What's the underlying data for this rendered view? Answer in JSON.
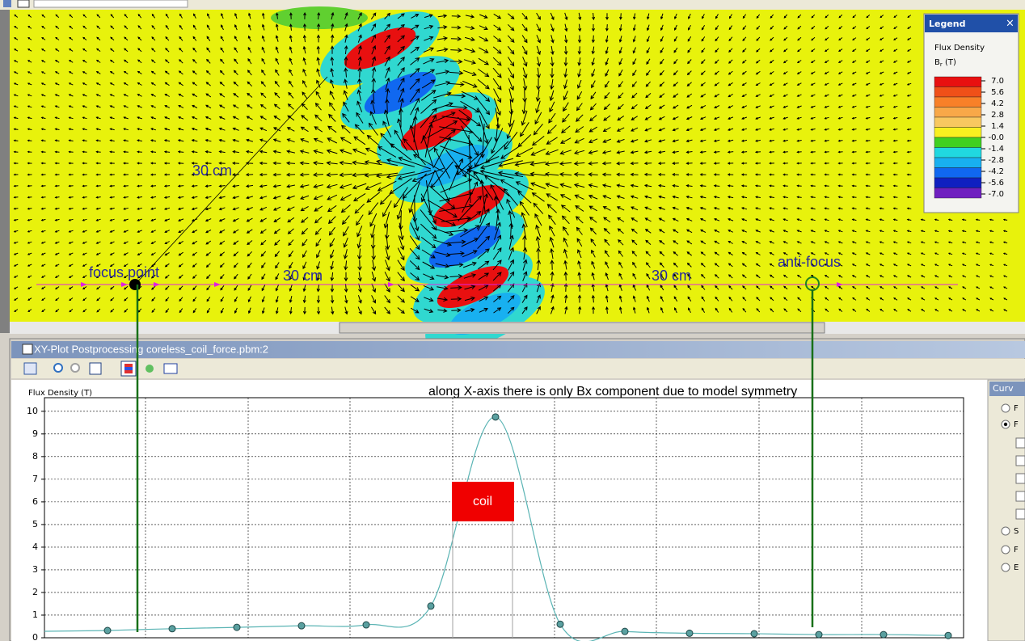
{
  "field_view": {
    "annotations": {
      "distance_diagonal": "30 cm",
      "distance_left": "30 cm",
      "distance_right": "30 cm",
      "focus": "focus point",
      "anti_focus": "anti-focus"
    },
    "legend": {
      "title": "Legend",
      "close": "×",
      "quantity": "Flux Density",
      "symbol": "B",
      "symbol_sub": "r",
      "unit": " (T)",
      "colors": [
        "#e81010",
        "#f05018",
        "#f88028",
        "#f8a848",
        "#f8c860",
        "#f8f020",
        "#40d020",
        "#20d8e0",
        "#18b0f0",
        "#1068f0",
        "#1020c0",
        "#7020c0"
      ],
      "ticks": [
        {
          "value": 7,
          "label": "7.0"
        },
        {
          "value": 5.6,
          "label": "5.6"
        },
        {
          "value": 4.2,
          "label": "4.2"
        },
        {
          "value": 2.8,
          "label": "2.8"
        },
        {
          "value": 1.4,
          "label": "1.4"
        },
        {
          "value": 0,
          "label": "-0.0"
        },
        {
          "value": -1.4,
          "label": "-1.4"
        },
        {
          "value": -2.8,
          "label": "-2.8"
        },
        {
          "value": -4.2,
          "label": "-4.2"
        },
        {
          "value": -5.6,
          "label": "-5.6"
        },
        {
          "value": -7,
          "label": "-7.0"
        }
      ],
      "range": [
        7,
        -7
      ]
    }
  },
  "plot_window": {
    "title": "XY-Plot Postprocessing coreless_coil_force.pbm:2",
    "side_panel": {
      "header": "Curv",
      "options": [
        "F",
        "F",
        "S",
        "F",
        "E"
      ]
    }
  },
  "chart_data": {
    "type": "line",
    "y_label": "Flux Density (T)",
    "annotation": "along X-axis there is only Bx component due to model symmetry",
    "region_label": "coil",
    "categories": [
      null,
      null,
      null,
      null,
      null,
      null,
      null,
      null,
      null,
      null,
      null,
      null,
      null,
      null
    ],
    "series": [
      {
        "color": "#5ab4b4",
        "values": [
          0.32,
          0.4,
          0.46,
          0.53,
          0.57,
          1.4,
          9.75,
          0.6,
          0.28,
          0.2,
          0.18,
          0.14,
          0.14,
          0.1
        ]
      }
    ],
    "ylim": [
      0,
      10.6
    ],
    "yticks": [
      0,
      1,
      2,
      3,
      4,
      5,
      6,
      7,
      8,
      9,
      10
    ],
    "grid": true
  }
}
